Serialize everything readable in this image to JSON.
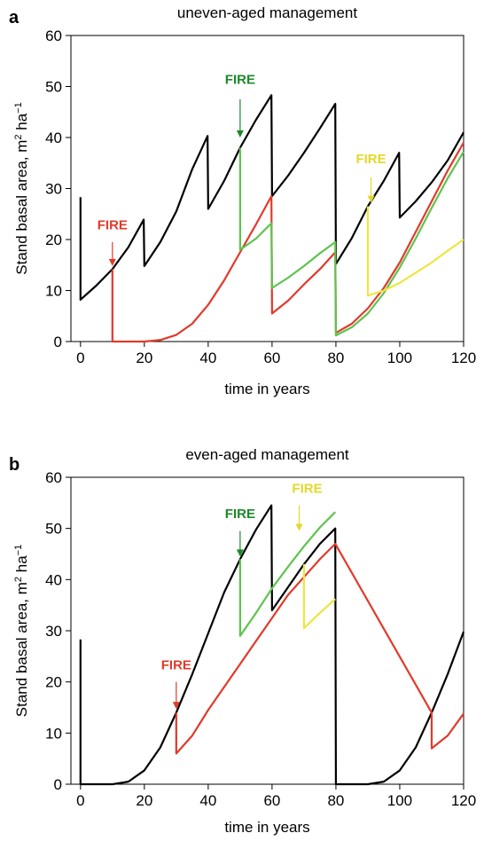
{
  "colors": {
    "black": "#000000",
    "red": "#e03a2a",
    "green": "#5ec34e",
    "yellow": "#ece640",
    "fire_red_text": "#e03a2a",
    "fire_green_text": "#1a8a28",
    "fire_yellow_text": "#e2d92a"
  },
  "chart_data": [
    {
      "panel_letter": "a",
      "type": "line",
      "title": "uneven-aged management",
      "xlabel": "time in years",
      "ylabel": "Stand basal area, m² ha⁻¹",
      "ylabel_parts": {
        "main": "Stand basal area, m",
        "sup1": "2",
        "mid": " ha",
        "sup2": "−1"
      },
      "xlim": [
        -3,
        120
      ],
      "ylim": [
        0,
        60
      ],
      "xticks": [
        0,
        20,
        40,
        60,
        80,
        100,
        120
      ],
      "yticks": [
        0,
        10,
        20,
        30,
        40,
        50,
        60
      ],
      "grid": false,
      "series": [
        {
          "color": "black",
          "points": [
            [
              0,
              28.3
            ],
            [
              0,
              8.2
            ],
            [
              5,
              11
            ],
            [
              10,
              14.2
            ],
            [
              15,
              18.5
            ],
            [
              19.8,
              23.9
            ],
            [
              20,
              14.8
            ],
            [
              25,
              19.5
            ],
            [
              30,
              25.5
            ],
            [
              35,
              33.8
            ],
            [
              39.8,
              40.3
            ],
            [
              40,
              26
            ],
            [
              45,
              31.5
            ],
            [
              50,
              38
            ],
            [
              55,
              43.5
            ],
            [
              59.8,
              48.3
            ],
            [
              60,
              28.5
            ],
            [
              65,
              32.5
            ],
            [
              70,
              37
            ],
            [
              75,
              41.8
            ],
            [
              79.8,
              46.6
            ],
            [
              80,
              15.2
            ],
            [
              85,
              20.3
            ],
            [
              90,
              26.5
            ],
            [
              95,
              31.5
            ],
            [
              99.8,
              37
            ],
            [
              100,
              24.3
            ],
            [
              105,
              27.5
            ],
            [
              110,
              31.2
            ],
            [
              115,
              35.5
            ],
            [
              120,
              41
            ]
          ]
        },
        {
          "color": "red",
          "points": [
            [
              10,
              14.2
            ],
            [
              10,
              0
            ],
            [
              20,
              0
            ],
            [
              25,
              0.3
            ],
            [
              30,
              1.3
            ],
            [
              35,
              3.5
            ],
            [
              40,
              7.2
            ],
            [
              45,
              12
            ],
            [
              50,
              17.5
            ],
            [
              55,
              23
            ],
            [
              59.8,
              28.5
            ],
            [
              60,
              5.5
            ],
            [
              65,
              8
            ],
            [
              70,
              11.2
            ],
            [
              75,
              14.2
            ],
            [
              79.8,
              17.5
            ],
            [
              80,
              1.7
            ],
            [
              85,
              3.5
            ],
            [
              90,
              6.5
            ],
            [
              95,
              10.5
            ],
            [
              100,
              15.5
            ],
            [
              105,
              21.5
            ],
            [
              110,
              27.5
            ],
            [
              115,
              33.5
            ],
            [
              120,
              39
            ]
          ]
        },
        {
          "color": "green",
          "points": [
            [
              50,
              38
            ],
            [
              50,
              18
            ],
            [
              55,
              20.2
            ],
            [
              59.8,
              23.2
            ],
            [
              60,
              10.5
            ],
            [
              65,
              12.5
            ],
            [
              70,
              14.8
            ],
            [
              75,
              17.3
            ],
            [
              79.8,
              19.5
            ],
            [
              80,
              1.2
            ],
            [
              85,
              2.8
            ],
            [
              90,
              5.5
            ],
            [
              95,
              9.5
            ],
            [
              100,
              14.5
            ],
            [
              105,
              20.2
            ],
            [
              110,
              26.2
            ],
            [
              115,
              32
            ],
            [
              120,
              37.2
            ]
          ]
        },
        {
          "color": "yellow",
          "points": [
            [
              90,
              26.5
            ],
            [
              90,
              9
            ],
            [
              95,
              10
            ],
            [
              100,
              11.5
            ],
            [
              105,
              13.5
            ],
            [
              110,
              15.5
            ],
            [
              115,
              17.8
            ],
            [
              120,
              20
            ]
          ]
        }
      ],
      "annotations": [
        {
          "text": "FIRE",
          "color": "fire_red_text",
          "x": 10,
          "y": 22,
          "arrow_from": [
            10,
            19.5
          ],
          "arrow_to": [
            10,
            14.8
          ]
        },
        {
          "text": "FIRE",
          "color": "fire_green_text",
          "x": 50,
          "y": 50.5,
          "arrow_from": [
            50,
            47.5
          ],
          "arrow_to": [
            50,
            40
          ]
        },
        {
          "text": "FIRE",
          "color": "fire_yellow_text",
          "x": 91,
          "y": 35,
          "arrow_from": [
            91,
            32.2
          ],
          "arrow_to": [
            91,
            27.2
          ]
        }
      ]
    },
    {
      "panel_letter": "b",
      "type": "line",
      "title": "even-aged management",
      "xlabel": "time in years",
      "ylabel": "Stand basal area, m² ha⁻¹",
      "ylabel_parts": {
        "main": "Stand basal area, m",
        "sup1": "2",
        "mid": " ha",
        "sup2": "−1"
      },
      "xlim": [
        -3,
        120
      ],
      "ylim": [
        0,
        60
      ],
      "xticks": [
        0,
        20,
        40,
        60,
        80,
        100,
        120
      ],
      "yticks": [
        0,
        10,
        20,
        30,
        40,
        50,
        60
      ],
      "grid": false,
      "series": [
        {
          "color": "black",
          "points": [
            [
              0,
              28.3
            ],
            [
              0,
              0
            ],
            [
              10,
              0
            ],
            [
              15,
              0.5
            ],
            [
              20,
              2.7
            ],
            [
              25,
              7.2
            ],
            [
              30,
              14
            ],
            [
              35,
              21.5
            ],
            [
              40,
              29.5
            ],
            [
              45,
              37.5
            ],
            [
              50,
              44
            ],
            [
              55,
              49.8
            ],
            [
              59.8,
              54.5
            ],
            [
              60,
              34
            ],
            [
              65,
              38.5
            ],
            [
              70,
              43
            ],
            [
              75,
              47
            ],
            [
              79.8,
              50
            ],
            [
              80,
              0
            ],
            [
              90,
              0
            ],
            [
              95,
              0.5
            ],
            [
              100,
              2.7
            ],
            [
              105,
              7.2
            ],
            [
              110,
              14
            ],
            [
              115,
              21.5
            ],
            [
              120,
              29.8
            ]
          ]
        },
        {
          "color": "red",
          "points": [
            [
              30,
              14
            ],
            [
              30,
              6
            ],
            [
              35,
              9.5
            ],
            [
              40,
              14.5
            ],
            [
              45,
              19
            ],
            [
              50,
              23.5
            ],
            [
              55,
              28
            ],
            [
              60,
              32.5
            ],
            [
              65,
              37
            ],
            [
              70,
              40.5
            ],
            [
              75,
              44
            ],
            [
              79.8,
              47
            ],
            [
              110,
              14
            ],
            [
              110,
              7
            ],
            [
              115,
              9.5
            ],
            [
              120,
              13.8
            ]
          ]
        },
        {
          "color": "green",
          "points": [
            [
              50,
              44
            ],
            [
              50,
              29
            ],
            [
              55,
              33.5
            ],
            [
              60,
              38.3
            ],
            [
              65,
              42.5
            ],
            [
              70,
              46.5
            ],
            [
              75,
              50.2
            ],
            [
              79.8,
              53.2
            ]
          ]
        },
        {
          "color": "yellow",
          "points": [
            [
              70,
              43
            ],
            [
              70,
              30.5
            ],
            [
              75,
              33.5
            ],
            [
              79.8,
              36.2
            ]
          ]
        }
      ],
      "annotations": [
        {
          "text": "FIRE",
          "color": "fire_red_text",
          "x": 30,
          "y": 22.5,
          "arrow_from": [
            30,
            20
          ],
          "arrow_to": [
            30,
            14.7
          ]
        },
        {
          "text": "FIRE",
          "color": "fire_green_text",
          "x": 50,
          "y": 52,
          "arrow_from": [
            50,
            49.5
          ],
          "arrow_to": [
            50,
            44.5
          ]
        },
        {
          "text": "FIRE",
          "color": "fire_yellow_text",
          "x": 71,
          "y": 57,
          "arrow_from": [
            68.5,
            54.5
          ],
          "arrow_to": [
            68.5,
            49.5
          ]
        }
      ]
    }
  ]
}
